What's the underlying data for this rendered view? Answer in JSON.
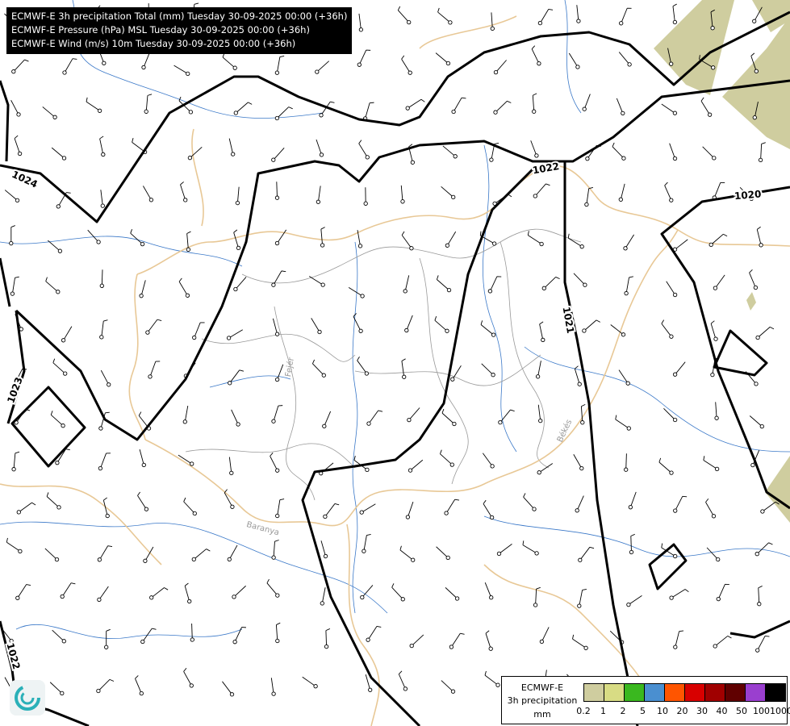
{
  "header": {
    "lines": [
      "ECMWF-E 3h precipitation Total (mm) Tuesday 30-09-2025 00:00 (+36h)",
      "ECMWF-E Pressure (hPa) MSL Tuesday 30-09-2025 00:00 (+36h)",
      "ECMWF-E Wind (m/s) 10m Tuesday 30-09-2025 00:00 (+36h)"
    ]
  },
  "map": {
    "region_labels": [
      "Fejér",
      "Baranya",
      "Békés"
    ],
    "isobar_labels": [
      "1024",
      "1022",
      "1020",
      "1021",
      "1023",
      "1022"
    ],
    "colors": {
      "isobar": "#000000",
      "border": "#e8c896",
      "river": "#3a78c8",
      "county": "#999999",
      "precip_light": "#cfcf9f"
    }
  },
  "legend": {
    "model": "ECMWF-E",
    "variable": "3h precipitation",
    "unit": "mm",
    "colors": [
      "#cfcd9f",
      "#d8dc84",
      "#3ab81f",
      "#4a8fd0",
      "#ff5500",
      "#d80000",
      "#a00000",
      "#600000",
      "#9a3fcf",
      "#000000"
    ],
    "ticks": [
      "0.2",
      "1",
      "2",
      "5",
      "10",
      "20",
      "30",
      "40",
      "50",
      "100",
      "1000"
    ]
  },
  "logo": {
    "icon": "weather-logo-icon"
  }
}
